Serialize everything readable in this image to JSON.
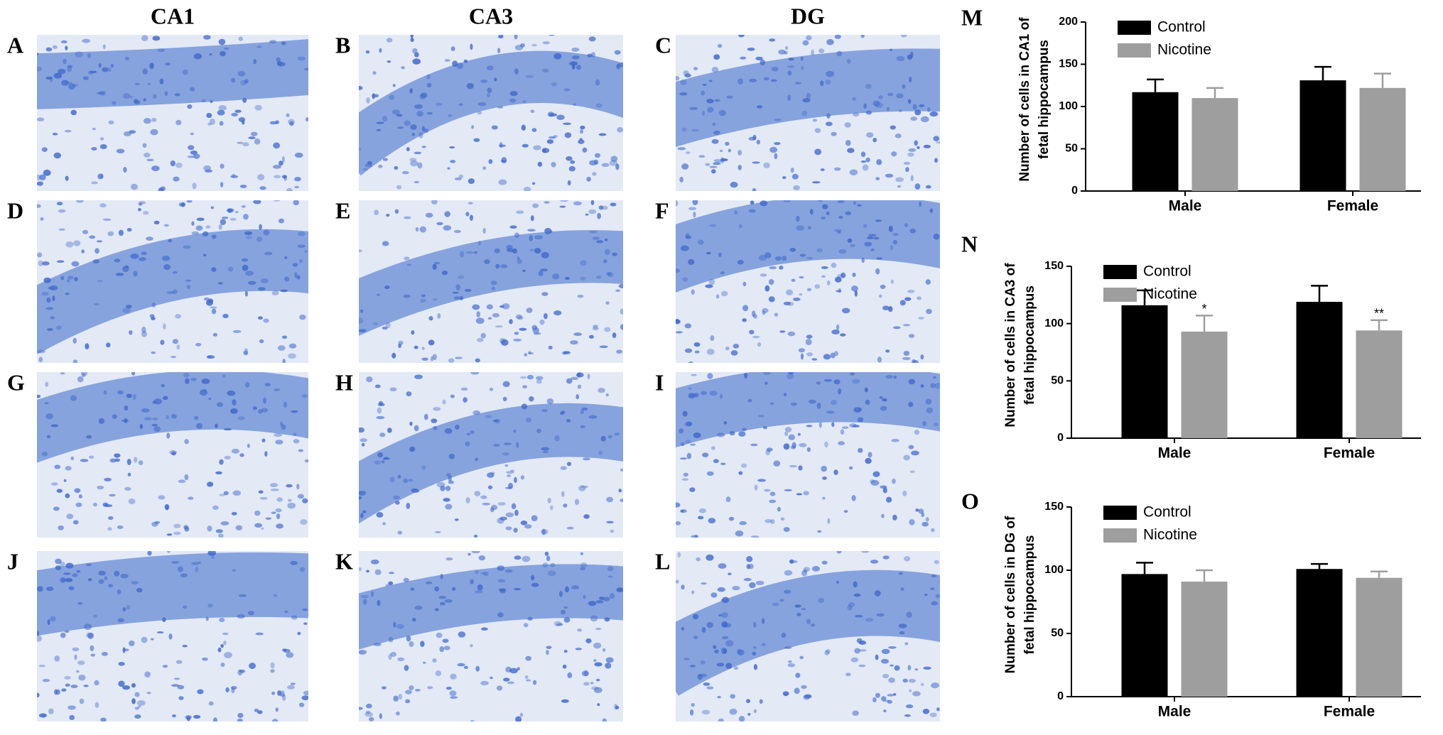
{
  "panels": {
    "columns": [
      "CA1",
      "CA3",
      "DG"
    ],
    "letters": [
      "A",
      "B",
      "C",
      "D",
      "E",
      "F",
      "G",
      "H",
      "I",
      "J",
      "K",
      "L"
    ]
  },
  "chart_data": [
    {
      "type": "bar",
      "panel_label": "M",
      "ylabel": [
        "Number of cells in CA1 of",
        "fetal hippocampus"
      ],
      "categories": [
        "Male",
        "Female"
      ],
      "ylim": [
        0,
        200
      ],
      "yticks": [
        0,
        50,
        100,
        150,
        200
      ],
      "series": [
        {
          "name": "Control",
          "color": "#000000",
          "values": [
            117,
            131
          ],
          "errors": [
            15,
            16
          ]
        },
        {
          "name": "Nicotine",
          "color": "#9e9e9e",
          "values": [
            110,
            122
          ],
          "errors": [
            12,
            17
          ]
        }
      ]
    },
    {
      "type": "bar",
      "panel_label": "N",
      "ylabel": [
        "Number of cells in CA3 of",
        "fetal hippocampus"
      ],
      "categories": [
        "Male",
        "Female"
      ],
      "ylim": [
        0,
        150
      ],
      "yticks": [
        0,
        50,
        100,
        150
      ],
      "series": [
        {
          "name": "Control",
          "color": "#000000",
          "values": [
            116,
            119
          ],
          "errors": [
            13,
            14
          ]
        },
        {
          "name": "Nicotine",
          "color": "#9e9e9e",
          "values": [
            93,
            94
          ],
          "errors": [
            14,
            9
          ],
          "annotations": [
            "*",
            "**"
          ]
        }
      ]
    },
    {
      "type": "bar",
      "panel_label": "O",
      "ylabel": [
        "Number of cells in DG of",
        "fetal hippocampus"
      ],
      "categories": [
        "Male",
        "Female"
      ],
      "ylim": [
        0,
        150
      ],
      "yticks": [
        0,
        50,
        100,
        150
      ],
      "series": [
        {
          "name": "Control",
          "color": "#000000",
          "values": [
            97,
            101
          ],
          "errors": [
            9,
            4
          ]
        },
        {
          "name": "Nicotine",
          "color": "#9e9e9e",
          "values": [
            91,
            94
          ],
          "errors": [
            9,
            5
          ]
        }
      ]
    }
  ]
}
